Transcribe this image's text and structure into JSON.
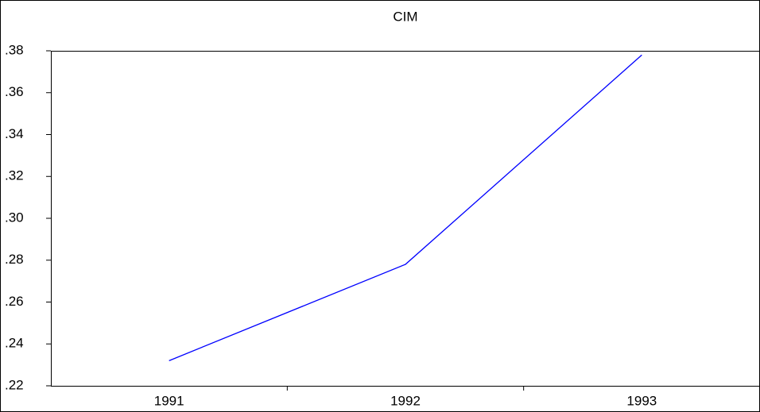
{
  "chart_data": {
    "type": "line",
    "title": "CIM",
    "categories": [
      "1991",
      "1992",
      "1993"
    ],
    "values": [
      0.232,
      0.278,
      0.378
    ],
    "color": "#0000ff",
    "ylim": [
      0.22,
      0.38
    ],
    "yticks": [
      {
        "value": 0.22,
        "label": ".22"
      },
      {
        "value": 0.24,
        "label": ".24"
      },
      {
        "value": 0.26,
        "label": ".26"
      },
      {
        "value": 0.28,
        "label": ".28"
      },
      {
        "value": 0.3,
        "label": ".30"
      },
      {
        "value": 0.32,
        "label": ".32"
      },
      {
        "value": 0.34,
        "label": ".34"
      },
      {
        "value": 0.36,
        "label": ".36"
      },
      {
        "value": 0.38,
        "label": ".38"
      }
    ]
  }
}
